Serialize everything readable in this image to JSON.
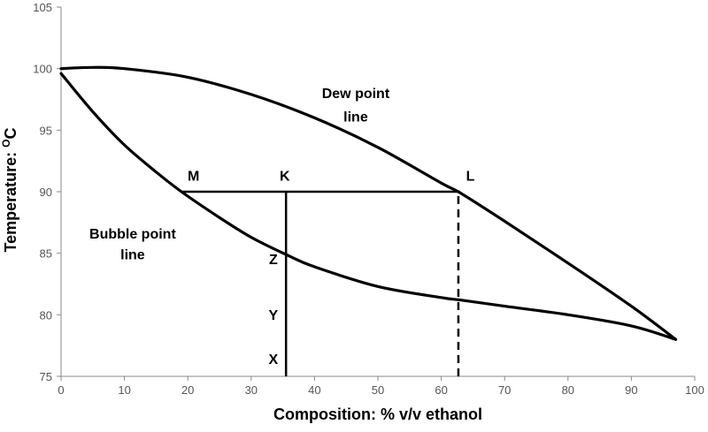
{
  "chart_data": {
    "type": "line",
    "title": "",
    "xlabel": "Composition: % v/v ethanol",
    "ylabel_main": "Temperature: ",
    "ylabel_sup": "O",
    "ylabel_unit": "C",
    "xlim": [
      0,
      100
    ],
    "ylim": [
      75,
      105
    ],
    "xticks": [
      0,
      10,
      20,
      30,
      40,
      50,
      60,
      70,
      80,
      90,
      100
    ],
    "yticks": [
      75,
      80,
      85,
      90,
      95,
      100,
      105
    ],
    "grid": false,
    "legend": "none",
    "series": [
      {
        "label": "Dew point line",
        "points": [
          [
            0,
            100
          ],
          [
            5,
            100.1
          ],
          [
            10,
            100
          ],
          [
            20,
            99.3
          ],
          [
            30,
            97.9
          ],
          [
            40,
            96
          ],
          [
            50,
            93.6
          ],
          [
            60,
            90.7
          ],
          [
            63,
            89.9
          ],
          [
            70,
            87.6
          ],
          [
            80,
            84.2
          ],
          [
            90,
            80.7
          ],
          [
            97,
            78
          ]
        ]
      },
      {
        "label": "Bubble point line",
        "points": [
          [
            0,
            99.6
          ],
          [
            5,
            96.5
          ],
          [
            10,
            93.8
          ],
          [
            15,
            91.6
          ],
          [
            19,
            90
          ],
          [
            25,
            87.9
          ],
          [
            30,
            86.3
          ],
          [
            35.5,
            84.9
          ],
          [
            40,
            83.9
          ],
          [
            50,
            82.3
          ],
          [
            60,
            81.4
          ],
          [
            63,
            81.2
          ],
          [
            70,
            80.7
          ],
          [
            80,
            80
          ],
          [
            90,
            79.1
          ],
          [
            97,
            78
          ]
        ]
      }
    ],
    "tie_line": {
      "y": 90,
      "x_start": 19,
      "x_end": 63
    },
    "vertical_solid": {
      "x": 35.5,
      "y_bottom": 75,
      "y_top": 90
    },
    "vertical_dashed": {
      "x": 62.7,
      "y_bottom": 75,
      "y_top": 90
    },
    "annotations": [
      {
        "id": "M",
        "text": "M",
        "x": 20.9,
        "y": 90.9
      },
      {
        "id": "K",
        "text": "K",
        "x": 35.3,
        "y": 90.9
      },
      {
        "id": "L",
        "text": "L",
        "x": 64.6,
        "y": 90.9
      },
      {
        "id": "Z",
        "text": "Z",
        "x": 33.5,
        "y": 84.1
      },
      {
        "id": "Y",
        "text": "Y",
        "x": 33.5,
        "y": 79.6
      },
      {
        "id": "X",
        "text": "X",
        "x": 33.5,
        "y": 76.0
      },
      {
        "id": "dew1",
        "text": "Dew point",
        "x": 46.5,
        "y": 97.6
      },
      {
        "id": "dew2",
        "text": "line",
        "x": 46.5,
        "y": 95.7
      },
      {
        "id": "bub1",
        "text": "Bubble point",
        "x": 11.3,
        "y": 86.2
      },
      {
        "id": "bub2",
        "text": "line",
        "x": 11.3,
        "y": 84.5
      }
    ]
  }
}
